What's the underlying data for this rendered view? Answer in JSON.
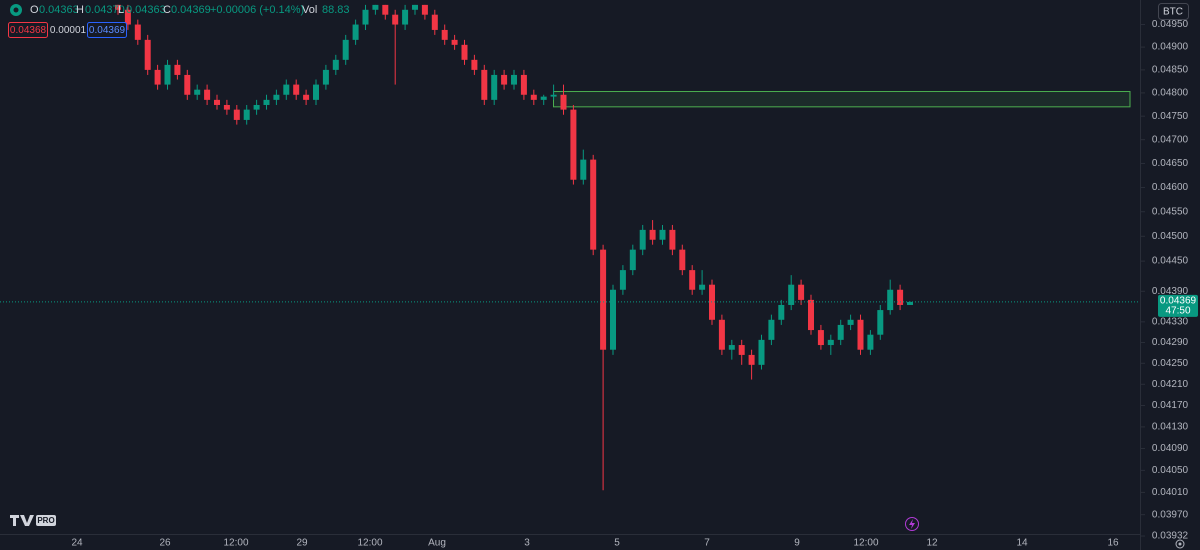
{
  "chart_data": {
    "type": "candlestick",
    "symbol": "BTC",
    "legend": {
      "o": "O",
      "open": "0.04363",
      "h": "H",
      "high": "0.04370",
      "l": "L",
      "low": "0.04363",
      "c": "C",
      "close": "0.04369",
      "change": "+0.00006 (+0.14%)",
      "vol": "Vol",
      "volume": "88.83"
    },
    "quote": {
      "sell": "0.04368",
      "spread": "0.00001",
      "buy": "0.04369"
    },
    "last_price": {
      "label": "0.04369",
      "countdown": "47:50"
    },
    "logo": "PRO",
    "log_scale": true,
    "grid": false,
    "up_color": "#089981",
    "down_color": "#f23645",
    "zone": {
      "top": 0.04803,
      "bottom": 0.0477,
      "color": "#4caf50"
    },
    "ylim": [
      0.03925,
      0.05005
    ],
    "yticks": [
      {
        "value": 0.0495,
        "label": "0.04950"
      },
      {
        "value": 0.049,
        "label": "0.04900"
      },
      {
        "value": 0.0485,
        "label": "0.04850"
      },
      {
        "value": 0.048,
        "label": "0.04800"
      },
      {
        "value": 0.0475,
        "label": "0.04750"
      },
      {
        "value": 0.047,
        "label": "0.04700"
      },
      {
        "value": 0.0465,
        "label": "0.04650"
      },
      {
        "value": 0.046,
        "label": "0.04600"
      },
      {
        "value": 0.0455,
        "label": "0.04550"
      },
      {
        "value": 0.045,
        "label": "0.04500"
      },
      {
        "value": 0.0445,
        "label": "0.04450"
      },
      {
        "value": 0.0439,
        "label": "0.04390"
      },
      {
        "value": 0.0433,
        "label": "0.04330"
      },
      {
        "value": 0.0429,
        "label": "0.04290"
      },
      {
        "value": 0.0425,
        "label": "0.04250"
      },
      {
        "value": 0.0421,
        "label": "0.04210"
      },
      {
        "value": 0.0417,
        "label": "0.04170"
      },
      {
        "value": 0.0413,
        "label": "0.04130"
      },
      {
        "value": 0.0409,
        "label": "0.04090"
      },
      {
        "value": 0.0405,
        "label": "0.04050"
      },
      {
        "value": 0.0401,
        "label": "0.04010"
      },
      {
        "value": 0.0397,
        "label": "0.03970"
      },
      0.03932
    ],
    "x_labels": [
      "24",
      "26",
      "12:00",
      "29",
      "12:00",
      "Aug",
      "3",
      "5",
      "7",
      "9",
      "12:00",
      "12",
      "14",
      "16"
    ],
    "open": [
      0.04994,
      0.04983,
      0.0495,
      0.04916,
      0.0485,
      0.04818,
      0.04861,
      0.04839,
      0.04796,
      0.04807,
      0.04785,
      0.04774,
      0.04764,
      0.04742,
      0.04764,
      0.04774,
      0.04785,
      0.04796,
      0.04818,
      0.04796,
      0.04785,
      0.04818,
      0.0485,
      0.04872,
      0.04916,
      0.0495,
      0.04983,
      0.04994,
      0.04972,
      0.0495,
      0.04983,
      0.04994,
      0.04972,
      0.04938,
      0.04916,
      0.04905,
      0.04872,
      0.0485,
      0.04785,
      0.04839,
      0.04818,
      0.04839,
      0.04796,
      0.04785,
      0.04792,
      0.04796,
      0.04764,
      0.04616,
      0.04658,
      0.04473,
      0.04276,
      0.04393,
      0.04432,
      0.04473,
      0.04513,
      0.04493,
      0.04513,
      0.04473,
      0.04432,
      0.04393,
      0.04403,
      0.04334,
      0.04276,
      0.04285,
      0.04266,
      0.04247,
      0.04295,
      0.04334,
      0.04363,
      0.04403,
      0.04373,
      0.04314,
      0.04285,
      0.04295,
      0.04324,
      0.04334,
      0.04276,
      0.04305,
      0.04353,
      0.04393,
      0.04363
    ],
    "high": [
      0.04994,
      0.04994,
      0.04961,
      0.04927,
      0.04861,
      0.04872,
      0.04872,
      0.0485,
      0.04818,
      0.04818,
      0.04796,
      0.04785,
      0.04774,
      0.04774,
      0.04785,
      0.04796,
      0.04807,
      0.04829,
      0.04829,
      0.04807,
      0.04829,
      0.04861,
      0.04883,
      0.04927,
      0.04961,
      0.04994,
      0.04994,
      0.04994,
      0.04983,
      0.04994,
      0.04994,
      0.04994,
      0.04983,
      0.0495,
      0.04927,
      0.04916,
      0.04883,
      0.04861,
      0.0485,
      0.0485,
      0.0485,
      0.0485,
      0.04807,
      0.04796,
      0.04818,
      0.04818,
      0.04774,
      0.04679,
      0.04668,
      0.04483,
      0.04403,
      0.04442,
      0.04483,
      0.04523,
      0.04533,
      0.04523,
      0.04523,
      0.04483,
      0.04442,
      0.04432,
      0.04413,
      0.04344,
      0.04295,
      0.04295,
      0.04276,
      0.04305,
      0.04344,
      0.04373,
      0.04422,
      0.04413,
      0.04383,
      0.04324,
      0.04305,
      0.04334,
      0.04344,
      0.04344,
      0.04314,
      0.04363,
      0.04413,
      0.04403,
      0.0437
    ],
    "low": [
      0.04972,
      0.04938,
      0.04905,
      0.04839,
      0.04807,
      0.04807,
      0.04829,
      0.04785,
      0.04785,
      0.04774,
      0.04764,
      0.04753,
      0.04732,
      0.04732,
      0.04753,
      0.04764,
      0.04774,
      0.04785,
      0.04785,
      0.04774,
      0.04774,
      0.04807,
      0.04839,
      0.04861,
      0.04905,
      0.04938,
      0.04972,
      0.04961,
      0.04818,
      0.04938,
      0.04972,
      0.04961,
      0.04927,
      0.04905,
      0.04894,
      0.04861,
      0.04839,
      0.04774,
      0.04774,
      0.04807,
      0.04807,
      0.04785,
      0.04774,
      0.04774,
      0.04785,
      0.04753,
      0.04606,
      0.04606,
      0.04462,
      0.04014,
      0.04266,
      0.04383,
      0.04422,
      0.04462,
      0.04483,
      0.04483,
      0.04462,
      0.04422,
      0.04383,
      0.04383,
      0.04324,
      0.04266,
      0.04257,
      0.04247,
      0.04219,
      0.04238,
      0.04285,
      0.04324,
      0.04353,
      0.04363,
      0.04305,
      0.04276,
      0.04266,
      0.04285,
      0.04314,
      0.04266,
      0.04266,
      0.04295,
      0.04344,
      0.04353,
      0.04363
    ],
    "close": [
      0.04983,
      0.0495,
      0.04916,
      0.0485,
      0.04818,
      0.04861,
      0.04839,
      0.04796,
      0.04807,
      0.04785,
      0.04774,
      0.04764,
      0.04742,
      0.04764,
      0.04774,
      0.04785,
      0.04796,
      0.04818,
      0.04796,
      0.04785,
      0.04818,
      0.0485,
      0.04872,
      0.04916,
      0.0495,
      0.04983,
      0.04994,
      0.04972,
      0.0495,
      0.04983,
      0.04994,
      0.04972,
      0.04938,
      0.04916,
      0.04905,
      0.04872,
      0.0485,
      0.04785,
      0.04839,
      0.04818,
      0.04839,
      0.04796,
      0.04785,
      0.04792,
      0.04796,
      0.04764,
      0.04616,
      0.04658,
      0.04473,
      0.04276,
      0.04393,
      0.04432,
      0.04473,
      0.04513,
      0.04493,
      0.04513,
      0.04473,
      0.04432,
      0.04393,
      0.04403,
      0.04334,
      0.04276,
      0.04285,
      0.04266,
      0.04247,
      0.04295,
      0.04334,
      0.04363,
      0.04403,
      0.04373,
      0.04314,
      0.04285,
      0.04295,
      0.04324,
      0.04334,
      0.04276,
      0.04305,
      0.04353,
      0.04393,
      0.04363,
      0.04369
    ]
  }
}
